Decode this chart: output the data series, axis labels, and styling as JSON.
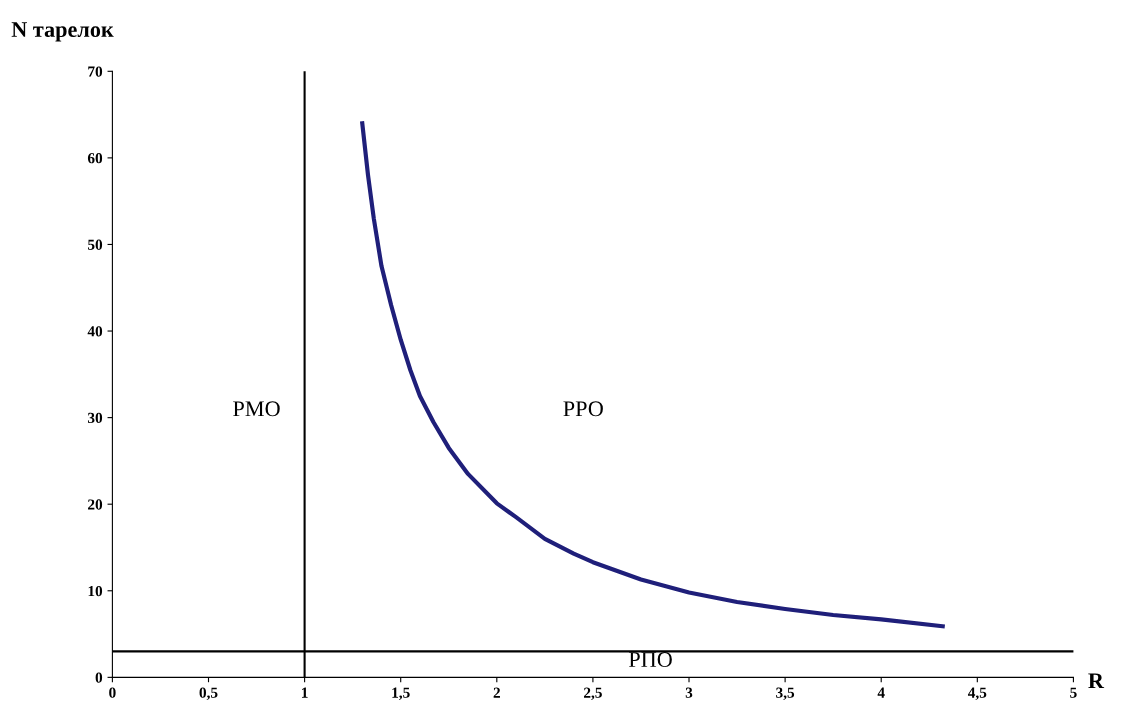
{
  "chart_data": {
    "type": "line",
    "xlabel": "R",
    "ylabel": "N тарелок",
    "x": [
      1.3,
      1.33,
      1.36,
      1.4,
      1.45,
      1.5,
      1.55,
      1.6,
      1.67,
      1.75,
      1.85,
      2.0,
      2.1,
      2.25,
      2.4,
      2.5,
      2.75,
      3.0,
      3.25,
      3.5,
      3.75,
      4.0,
      4.32
    ],
    "series": [
      {
        "color": "#1f1f7a",
        "values": [
          64,
          58,
          53,
          47.5,
          43,
          39,
          35.5,
          32.5,
          29.5,
          26.5,
          23.5,
          20.1,
          18.5,
          16,
          14.3,
          13.3,
          11.3,
          9.8,
          8.7,
          7.9,
          7.2,
          6.7,
          5.9
        ]
      }
    ],
    "xlim": [
      0,
      5
    ],
    "ylim": [
      0,
      70
    ],
    "xticks": [
      0,
      {
        "value": 0.5,
        "label": "0,5"
      },
      1,
      {
        "value": 1.5,
        "label": "1,5"
      },
      2,
      {
        "value": 2.5,
        "label": "2,5"
      },
      3,
      {
        "value": 3.5,
        "label": "3,5"
      },
      4,
      {
        "value": 4.5,
        "label": "4,5"
      },
      5
    ],
    "yticks": [
      0,
      10,
      20,
      30,
      40,
      50,
      60,
      70
    ],
    "ref_lines": [
      {
        "axis": "x",
        "value": 1,
        "color": "#000000"
      },
      {
        "axis": "y",
        "value": 3,
        "label": "РПО",
        "color": "#000000"
      }
    ],
    "annotations": [
      "РМО",
      "РРО"
    ],
    "grid": false,
    "legend": false,
    "marker": "none",
    "line_style": "solid"
  }
}
